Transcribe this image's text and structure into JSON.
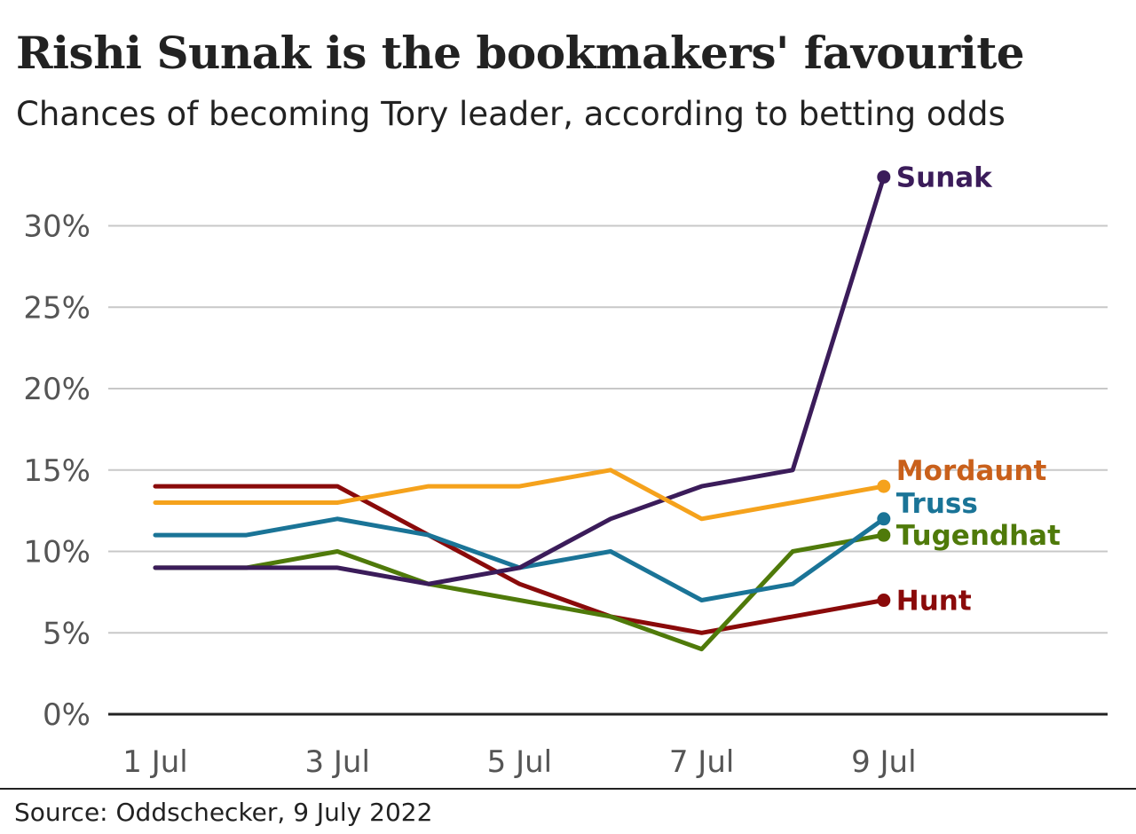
{
  "header": {
    "title": "Rishi Sunak is the bookmakers' favourite",
    "subtitle": "Chances of becoming Tory leader, according to betting odds"
  },
  "footer": {
    "source": "Source: Oddschecker, 9 July 2022"
  },
  "chart_data": {
    "type": "line",
    "title": "Rishi Sunak is the bookmakers' favourite",
    "subtitle": "Chances of becoming Tory leader, according to betting odds",
    "x": [
      "1 Jul",
      "2 Jul",
      "3 Jul",
      "4 Jul",
      "5 Jul",
      "6 Jul",
      "7 Jul",
      "8 Jul",
      "9 Jul"
    ],
    "x_tick_labels": [
      "1 Jul",
      "3 Jul",
      "5 Jul",
      "7 Jul",
      "9 Jul"
    ],
    "y_ticks": [
      0,
      5,
      10,
      15,
      20,
      25,
      30
    ],
    "y_tick_labels": [
      "0%",
      "5%",
      "10%",
      "15%",
      "20%",
      "25%",
      "30%"
    ],
    "ylim": [
      0,
      33
    ],
    "grid": true,
    "legend": "direct labels at line ends",
    "series": [
      {
        "name": "Sunak",
        "color": "#3b1c5a",
        "label_color": "#3b1c5a",
        "values": [
          9,
          9,
          9,
          8,
          9,
          12,
          14,
          15,
          33
        ]
      },
      {
        "name": "Mordaunt",
        "color": "#f5a21c",
        "label_color": "#c9601b",
        "values": [
          13,
          13,
          13,
          14,
          14,
          15,
          12,
          13,
          14
        ]
      },
      {
        "name": "Truss",
        "color": "#1a7497",
        "label_color": "#1a7497",
        "values": [
          11,
          11,
          12,
          11,
          9,
          10,
          7,
          8,
          12
        ]
      },
      {
        "name": "Tugendhat",
        "color": "#4f7a0a",
        "label_color": "#4f7a0a",
        "values": [
          9,
          9,
          10,
          8,
          7,
          6,
          4,
          10,
          11
        ]
      },
      {
        "name": "Hunt",
        "color": "#8a0a0a",
        "label_color": "#8a0a0a",
        "values": [
          14,
          14,
          14,
          11,
          8,
          6,
          5,
          6,
          7
        ]
      }
    ]
  }
}
